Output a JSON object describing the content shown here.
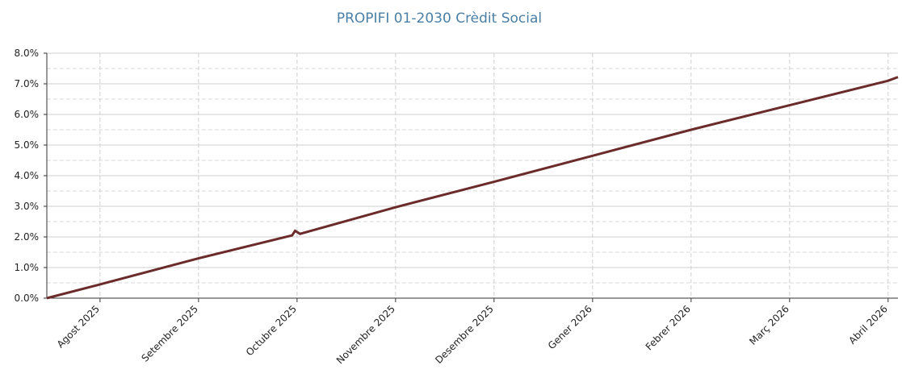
{
  "chart_data": {
    "type": "line",
    "title": "PROPIFI 01-2030 Crèdit Social",
    "x": [
      -0.54,
      0,
      1,
      1.95,
      1.98,
      2.03,
      3,
      4,
      5,
      6,
      7,
      8,
      8.1
    ],
    "series": [
      {
        "name": "PROPIFI 01-2030 Crèdit Social",
        "color": "#6b2b2b",
        "values": [
          0,
          0.45,
          1.3,
          2.05,
          2.2,
          2.1,
          2.97,
          3.8,
          4.65,
          5.5,
          6.3,
          7.1,
          7.22
        ]
      }
    ],
    "xlim": [
      -0.54,
      8.1
    ],
    "xticks": [
      {
        "value": 0,
        "label": "Agost 2025"
      },
      {
        "value": 1,
        "label": "Setembre 2025"
      },
      {
        "value": 2,
        "label": "Octubre 2025"
      },
      {
        "value": 3,
        "label": "Novembre 2025"
      },
      {
        "value": 4,
        "label": "Desembre 2025"
      },
      {
        "value": 5,
        "label": "Gener 2026"
      },
      {
        "value": 6,
        "label": "Febrer 2026"
      },
      {
        "value": 7,
        "label": "Març 2026"
      },
      {
        "value": 8,
        "label": "Abril 2026"
      }
    ],
    "ylim": [
      0,
      8
    ],
    "yticks": [
      {
        "value": 0,
        "label": "0.0%"
      },
      {
        "value": 1,
        "label": "1.0%"
      },
      {
        "value": 2,
        "label": "2.0%"
      },
      {
        "value": 3,
        "label": "3.0%"
      },
      {
        "value": 4,
        "label": "4.0%"
      },
      {
        "value": 5,
        "label": "5.0%"
      },
      {
        "value": 6,
        "label": "6.0%"
      },
      {
        "value": 7,
        "label": "7.0%"
      },
      {
        "value": 8,
        "label": "8.0%"
      }
    ],
    "grid": true
  }
}
